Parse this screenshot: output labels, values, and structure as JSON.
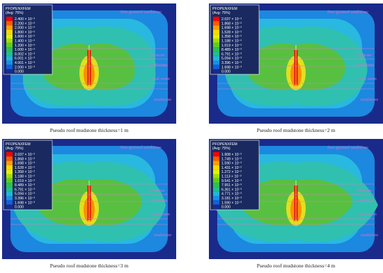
{
  "panels": [
    {
      "legend_title": "PFOPENXFEM",
      "legend_avg": "(Avg: 75%)",
      "legend_values": [
        "2.400 × 10⁻²",
        "2.200 × 10⁻²",
        "2.000 × 10⁻²",
        "1.800 × 10⁻²",
        "1.600 × 10⁻²",
        "1.400 × 10⁻²",
        "1.200 × 10⁻²",
        "1.000 × 10⁻²",
        "8.002 × 10⁻³",
        "6.001 × 10⁻³",
        "4.001 × 10⁻³",
        "2.000 × 10⁻³",
        "0.000"
      ],
      "layers": [
        "fine-grained sandstone",
        "siltstone",
        "mudstone",
        "coal seam",
        "mudstone"
      ],
      "caption": "Pseudo roof mudstone thickness=1 m"
    },
    {
      "legend_title": "PFOPENXFEM",
      "legend_avg": "(Avg: 75%)",
      "legend_values": [
        "2.037 × 10⁻²",
        "1.868 × 10⁻²",
        "1.698 × 10⁻²",
        "1.528 × 10⁻²",
        "1.358 × 10⁻²",
        "1.188 × 10⁻²",
        "1.019 × 10⁻²",
        "8.489 × 10⁻³",
        "6.791 × 10⁻³",
        "5.094 × 10⁻³",
        "3.396 × 10⁻³",
        "1.698 × 10⁻³",
        "0.000"
      ],
      "layers": [
        "fine-grained sandstone",
        "siltstone",
        "mudstone",
        "coal seam",
        "mudstone"
      ],
      "caption": "Pseudo roof mudstone thickness=2 m"
    },
    {
      "legend_title": "PFOPENXFEM",
      "legend_avg": "(Avg: 75%)",
      "legend_values": [
        "2.037 × 10⁻²",
        "1.868 × 10⁻²",
        "1.698 × 10⁻²",
        "1.528 × 10⁻²",
        "1.358 × 10⁻²",
        "1.188 × 10⁻²",
        "1.019 × 10⁻²",
        "8.489 × 10⁻³",
        "6.791 × 10⁻³",
        "5.094 × 10⁻³",
        "3.396 × 10⁻³",
        "1.698 × 10⁻³",
        "0.000"
      ],
      "layers": [
        "fine-grained sandstone",
        "siltstone",
        "mudstone",
        "coal seam",
        "mudstone"
      ],
      "caption": "Pseudo roof mudstone thickness=3 m"
    },
    {
      "legend_title": "PFOPENXFEM",
      "legend_avg": "(Avg: 75%)",
      "legend_values": [
        "1.908 × 10⁻²",
        "1.749 × 10⁻²",
        "1.590 × 10⁻²",
        "1.431 × 10⁻²",
        "1.272 × 10⁻²",
        "1.113 × 10⁻²",
        "9.541 × 10⁻³",
        "7.951 × 10⁻³",
        "6.361 × 10⁻³",
        "4.771 × 10⁻³",
        "3.181 × 10⁻³",
        "1.590 × 10⁻³",
        "0.000"
      ],
      "layers": [
        "fine-grained sandstone",
        "siltstone",
        "mudstone",
        "coal seam",
        "mudstone"
      ],
      "caption": "Pseudo roof mudstone thickness=4 m"
    }
  ]
}
